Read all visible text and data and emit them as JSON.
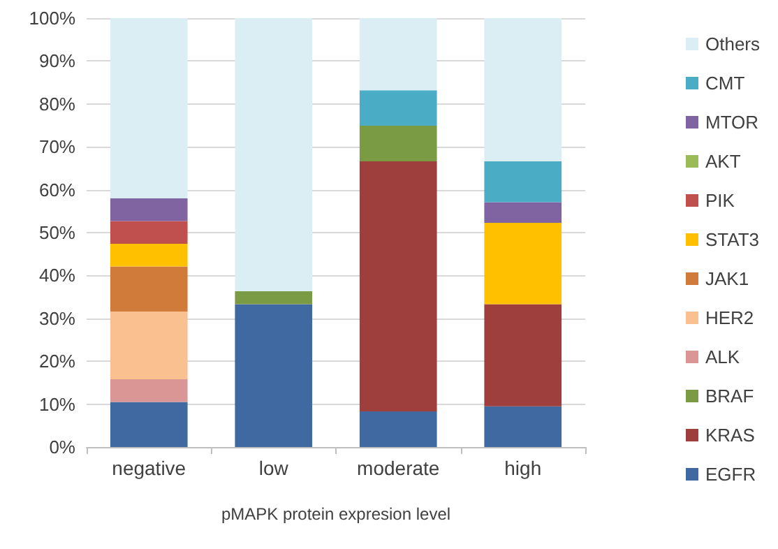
{
  "chart_data": {
    "type": "bar",
    "stacked": true,
    "xlabel": "pMAPK protein expresion level",
    "categories": [
      "negative",
      "low",
      "moderate",
      "high"
    ],
    "series": [
      {
        "name": "EGFR",
        "color": "#3f69a0",
        "values": [
          10.5,
          33.3,
          8.3,
          9.5
        ]
      },
      {
        "name": "KRAS",
        "color": "#9e3f3d",
        "values": [
          0,
          0,
          58.3,
          23.8
        ]
      },
      {
        "name": "BRAF",
        "color": "#7b9a44",
        "values": [
          0,
          3.0,
          8.3,
          0
        ]
      },
      {
        "name": "ALK",
        "color": "#d99694",
        "values": [
          5.3,
          0,
          0,
          0
        ]
      },
      {
        "name": "HER2",
        "color": "#fac090",
        "values": [
          15.8,
          0,
          0,
          0
        ]
      },
      {
        "name": "JAK1",
        "color": "#d07b39",
        "values": [
          10.5,
          0,
          0,
          0
        ]
      },
      {
        "name": "STAT3",
        "color": "#ffc000",
        "values": [
          5.3,
          0,
          0,
          19.0
        ]
      },
      {
        "name": "PIK",
        "color": "#c0504d",
        "values": [
          5.3,
          0,
          0,
          0
        ]
      },
      {
        "name": "AKT",
        "color": "#9bbb59",
        "values": [
          0,
          0,
          0,
          0
        ]
      },
      {
        "name": "MTOR",
        "color": "#8064a2",
        "values": [
          5.3,
          0,
          0,
          4.8
        ]
      },
      {
        "name": "CMT",
        "color": "#4bacc6",
        "values": [
          0,
          0,
          8.3,
          9.5
        ]
      },
      {
        "name": "Others",
        "color": "#dbeef4",
        "values": [
          42.0,
          63.7,
          16.8,
          33.4
        ]
      }
    ],
    "ylim": [
      0,
      100
    ],
    "yticks": [
      {
        "value": 0,
        "label": "0%"
      },
      {
        "value": 10,
        "label": "10%"
      },
      {
        "value": 20,
        "label": "20%"
      },
      {
        "value": 30,
        "label": "30%"
      },
      {
        "value": 40,
        "label": "40%"
      },
      {
        "value": 50,
        "label": "50%"
      },
      {
        "value": 60,
        "label": "60%"
      },
      {
        "value": 70,
        "label": "70%"
      },
      {
        "value": 80,
        "label": "80%"
      },
      {
        "value": 90,
        "label": "90%"
      },
      {
        "value": 100,
        "label": "100%"
      }
    ],
    "grid": "y",
    "legend": "right"
  }
}
